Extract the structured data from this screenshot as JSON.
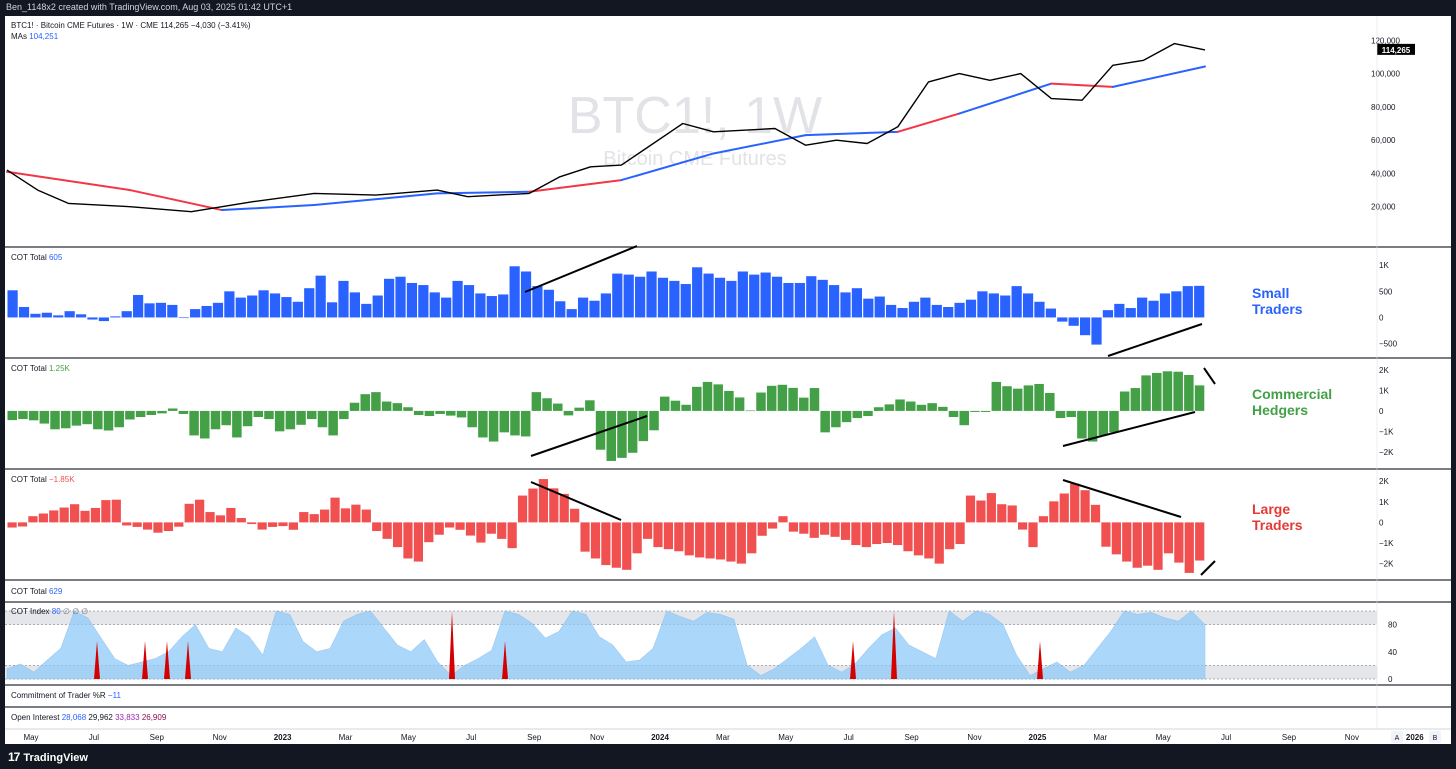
{
  "credit": "Ben_1148x2 created with TradingView.com, Aug 03, 2025 01:42 UTC+1",
  "brand": "TradingView",
  "brand_icon": "tradingview-logo-icon",
  "watermark": {
    "title": "BTC1!, 1W",
    "subtitle": "Bitcoin CME Futures"
  },
  "price_header": {
    "symbol": "BTC1! · Bitcoin CME Futures · 1W · CME",
    "last": "114,265",
    "change": "−4,030 (−3.41%)",
    "ma_label": "MAs",
    "ma_value": "104,251"
  },
  "price_axis": {
    "ticks": [
      "120,000",
      "100,000",
      "80,000",
      "60,000",
      "40,000",
      "20,000"
    ],
    "last_badge": "114,265"
  },
  "time_axis": [
    "May",
    "Jul",
    "Sep",
    "Nov",
    "2023",
    "Mar",
    "May",
    "Jul",
    "Sep",
    "Nov",
    "2024",
    "Mar",
    "May",
    "Jul",
    "Sep",
    "Nov",
    "2025",
    "Mar",
    "May",
    "Jul",
    "Sep",
    "Nov",
    "2026"
  ],
  "axis_buttons": [
    "A",
    "B"
  ],
  "panes": {
    "small": {
      "label": "COT Total",
      "value": "605",
      "side_label": [
        "Small",
        "Traders"
      ],
      "ticks": [
        "1K",
        "500",
        "0",
        "−500"
      ]
    },
    "commercial": {
      "label": "COT Total",
      "value": "1.25K",
      "side_label": [
        "Commercial",
        "Hedgers"
      ],
      "ticks": [
        "2K",
        "1K",
        "0",
        "−1K",
        "−2K"
      ]
    },
    "large": {
      "label": "COT Total",
      "value": "−1.85K",
      "side_label": [
        "Large",
        "Traders"
      ],
      "ticks": [
        "2K",
        "1K",
        "0",
        "−1K",
        "−2K"
      ]
    },
    "total": {
      "label": "COT Total",
      "value": "629"
    },
    "index": {
      "label": "COT Index",
      "value": "80",
      "extra": [
        "∅",
        "∅",
        "∅"
      ],
      "ticks": [
        "80",
        "40",
        "0"
      ]
    },
    "williams": {
      "label": "Commitment of Trader %R",
      "value": "−11"
    },
    "oi": {
      "label": "Open Interest",
      "values": [
        "28,068",
        "29,962",
        "33,833",
        "26,909"
      ]
    }
  },
  "colors": {
    "price": "#000000",
    "ma_red": "#f23645",
    "ma_blue": "#2962ff",
    "small": "#2962ff",
    "commercial": "#43a047",
    "large": "#f05050",
    "index_fill": "#90caf9",
    "index_spike": "#d50000",
    "oi_1": "#2962ff",
    "oi_3": "#9c27b0",
    "oi_4": "#880e4f"
  },
  "chart_data": [
    {
      "type": "line",
      "title": "BTC1! · Bitcoin CME Futures · 1W · CME",
      "x_range": [
        "2022-05",
        "2025-08"
      ],
      "ylim": [
        0,
        125000
      ],
      "series": [
        {
          "name": "BTC1!",
          "x": [
            "2022-05",
            "2022-06",
            "2022-07",
            "2022-09",
            "2022-11",
            "2023-01",
            "2023-03",
            "2023-05",
            "2023-07",
            "2023-08",
            "2023-10",
            "2023-11",
            "2023-12",
            "2024-01",
            "2024-03",
            "2024-04",
            "2024-06",
            "2024-07",
            "2024-08",
            "2024-09",
            "2024-10",
            "2024-11",
            "2024-12",
            "2025-01",
            "2025-02",
            "2025-03",
            "2025-04",
            "2025-05",
            "2025-06",
            "2025-07",
            "2025-08"
          ],
          "values": [
            42000,
            30000,
            22000,
            20000,
            17000,
            23000,
            28000,
            27000,
            30000,
            26000,
            28000,
            38000,
            44000,
            45000,
            70000,
            65000,
            67000,
            57000,
            60000,
            58000,
            68000,
            95000,
            100000,
            96000,
            100000,
            85000,
            84000,
            105000,
            108000,
            118000,
            114265
          ]
        },
        {
          "name": "MAs",
          "x": [
            "2022-05",
            "2022-09",
            "2022-12",
            "2023-03",
            "2023-07",
            "2023-10",
            "2024-01",
            "2024-04",
            "2024-07",
            "2024-10",
            "2024-12",
            "2025-03",
            "2025-05",
            "2025-08"
          ],
          "values": [
            41000,
            30000,
            18000,
            21000,
            28000,
            29000,
            36000,
            52000,
            63000,
            65000,
            76000,
            94000,
            92000,
            104251
          ]
        }
      ]
    },
    {
      "type": "bar",
      "title": "COT Total",
      "x_range": [
        "2022-05",
        "2025-08"
      ],
      "ylim": [
        -700,
        1100
      ],
      "series": [
        {
          "values": [
            520,
            200,
            70,
            90,
            40,
            120,
            60,
            -40,
            -70,
            20,
            120,
            430,
            270,
            280,
            240,
            0,
            160,
            220,
            280,
            500,
            380,
            420,
            520,
            460,
            390,
            300,
            560,
            800,
            290,
            700,
            480,
            260,
            420,
            740,
            780,
            660,
            620,
            480,
            380,
            700,
            620,
            460,
            410,
            440,
            980,
            880,
            600,
            530,
            310,
            160,
            380,
            320,
            460,
            840,
            820,
            780,
            880,
            760,
            700,
            640,
            960,
            840,
            760,
            700,
            880,
            820,
            860,
            780,
            660,
            660,
            790,
            720,
            620,
            480,
            560,
            360,
            400,
            240,
            180,
            300,
            380,
            240,
            200,
            280,
            340,
            500,
            460,
            420,
            600,
            460,
            300,
            170,
            -80,
            -160,
            -340,
            -520,
            140,
            260,
            180,
            380,
            320,
            460,
            500,
            600,
            605
          ]
        }
      ]
    },
    {
      "type": "bar",
      "title": "COT Total",
      "x_range": [
        "2022-05",
        "2025-08"
      ],
      "ylim": [
        -2600,
        2200
      ],
      "series": [
        {
          "values": [
            -450,
            -400,
            -460,
            -620,
            -900,
            -850,
            -720,
            -650,
            -900,
            -960,
            -800,
            -420,
            -300,
            -200,
            -120,
            120,
            -150,
            -1200,
            -1350,
            -900,
            -700,
            -1300,
            -750,
            -300,
            -400,
            -1000,
            -900,
            -680,
            -400,
            -800,
            -1200,
            -400,
            400,
            820,
            920,
            460,
            380,
            180,
            -200,
            -250,
            -150,
            -230,
            -320,
            -800,
            -1300,
            -1500,
            -1050,
            -1200,
            -1250,
            920,
            620,
            360,
            -220,
            160,
            520,
            -1900,
            -2450,
            -2300,
            -2050,
            -1480,
            -950,
            700,
            500,
            300,
            1180,
            1420,
            1300,
            980,
            660,
            20,
            900,
            1230,
            1280,
            1130,
            650,
            1120,
            -1050,
            -800,
            -550,
            -350,
            -250,
            180,
            320,
            560,
            460,
            300,
            380,
            200,
            -300,
            -700,
            -50,
            -50,
            1420,
            1210,
            1090,
            1250,
            1320,
            880,
            -350,
            -300,
            -1350,
            -1500,
            -1200,
            -1050,
            950,
            1120,
            1740,
            1860,
            1940,
            1920,
            1760,
            1250
          ]
        }
      ]
    },
    {
      "type": "bar",
      "title": "COT Total",
      "x_range": [
        "2022-05",
        "2025-08"
      ],
      "ylim": [
        -2600,
        2200
      ],
      "series": [
        {
          "values": [
            -250,
            -200,
            300,
            430,
            580,
            720,
            880,
            560,
            700,
            1080,
            1100,
            -150,
            -220,
            -350,
            -500,
            -420,
            -210,
            900,
            1100,
            500,
            340,
            700,
            210,
            -80,
            -350,
            -220,
            -180,
            -360,
            500,
            400,
            620,
            1200,
            680,
            860,
            620,
            -420,
            -800,
            -1200,
            -1750,
            -1900,
            -960,
            -600,
            -250,
            -360,
            -640,
            -980,
            -550,
            -800,
            -1250,
            1300,
            1640,
            2100,
            1650,
            1380,
            660,
            -1420,
            -1750,
            -2070,
            -2200,
            -2300,
            -1500,
            -800,
            -1200,
            -1300,
            -1400,
            -1600,
            -1700,
            -1750,
            -1800,
            -1900,
            -2000,
            -1500,
            -650,
            -300,
            300,
            -450,
            -550,
            -750,
            -600,
            -700,
            -850,
            -1100,
            -1200,
            -1050,
            -1000,
            -1100,
            -1400,
            -1600,
            -1750,
            -2000,
            -1300,
            -1050,
            1300,
            1060,
            1420,
            880,
            820,
            -350,
            -1200,
            300,
            1020,
            1400,
            1880,
            1560,
            850,
            -1180,
            -1550,
            -1900,
            -2200,
            -2100,
            -2300,
            -1500,
            -1950,
            -2450,
            -1850
          ]
        }
      ]
    },
    {
      "type": "area",
      "title": "COT Index",
      "x_range": [
        "2022-05",
        "2025-08"
      ],
      "ylim": [
        0,
        100
      ],
      "series": [
        {
          "name": "COT Index",
          "values": [
            15,
            22,
            10,
            28,
            45,
            100,
            90,
            60,
            30,
            20,
            25,
            30,
            40,
            62,
            80,
            45,
            40,
            75,
            62,
            35,
            100,
            95,
            55,
            40,
            45,
            85,
            95,
            100,
            75,
            50,
            40,
            58,
            25,
            5,
            20,
            30,
            42,
            100,
            95,
            82,
            60,
            70,
            100,
            95,
            62,
            50,
            25,
            28,
            45,
            100,
            92,
            85,
            98,
            95,
            88,
            20,
            5,
            15,
            30,
            45,
            62,
            20,
            10,
            22,
            45,
            65,
            75,
            50,
            40,
            30,
            100,
            85,
            100,
            95,
            80,
            35,
            5,
            15,
            25,
            10,
            20,
            45,
            70,
            100,
            95,
            98,
            90,
            85,
            100,
            80
          ]
        }
      ]
    }
  ]
}
